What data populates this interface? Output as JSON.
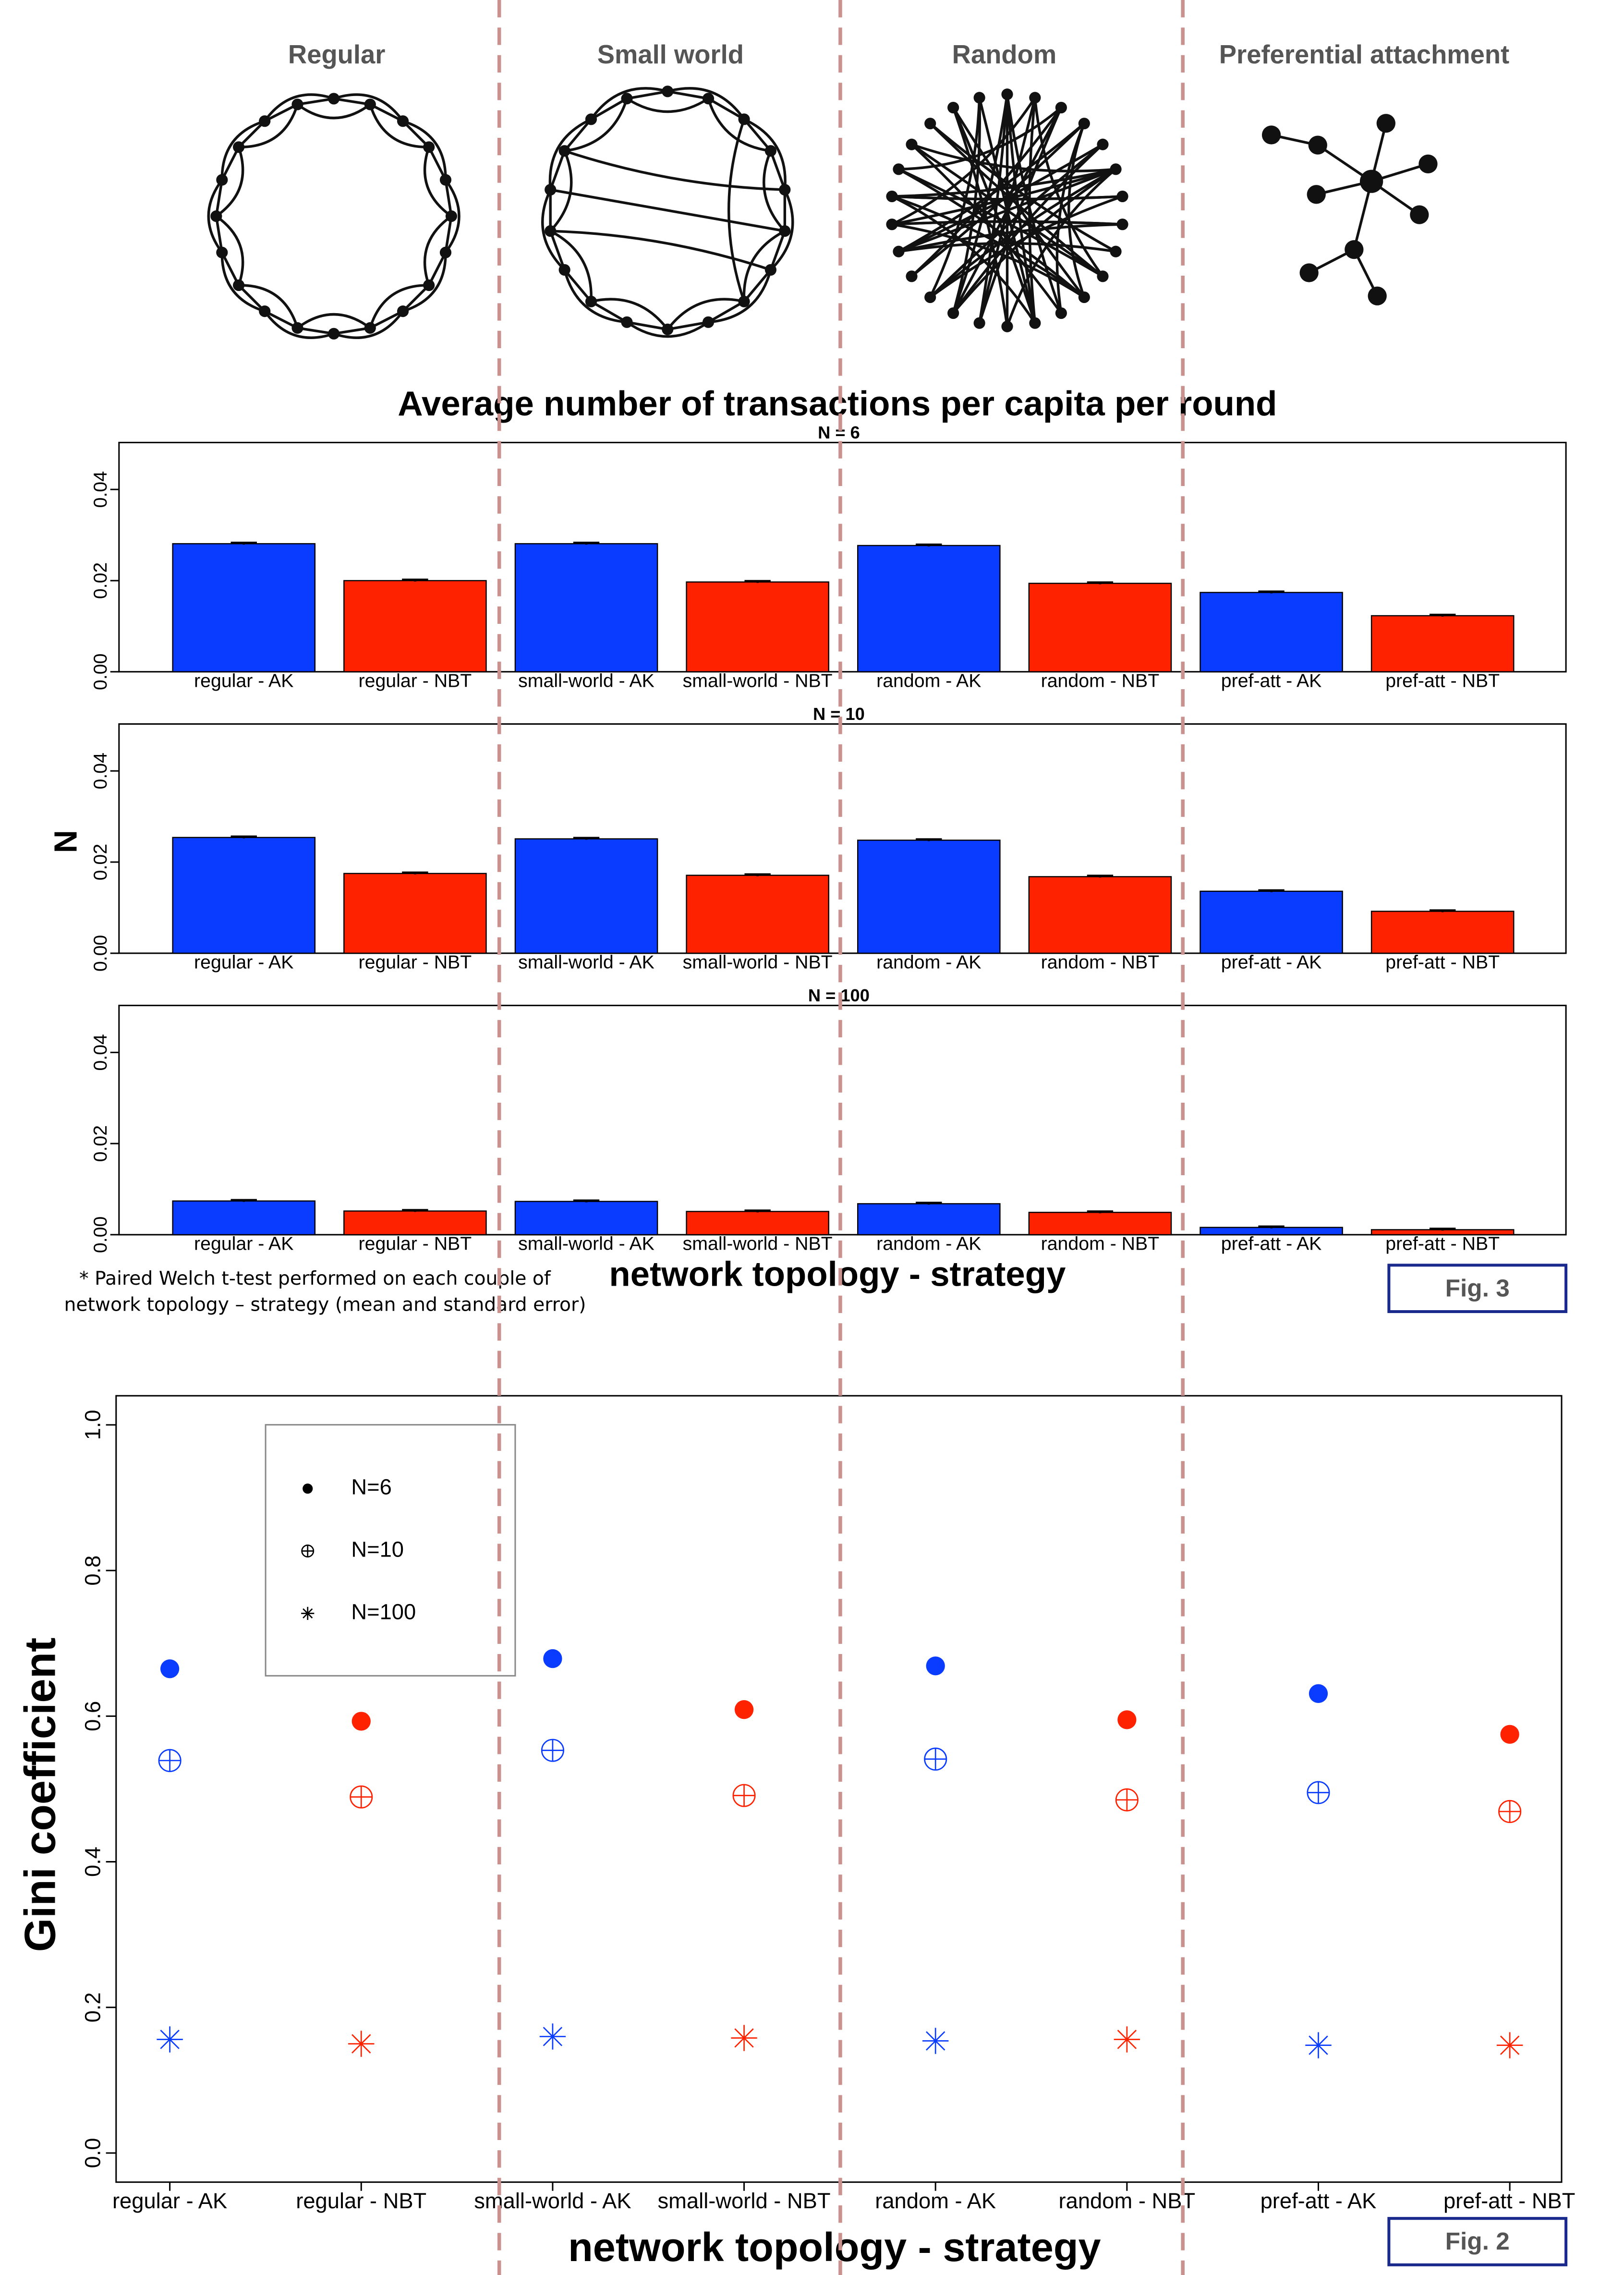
{
  "network_panels": {
    "labels": [
      "Regular",
      "Small world",
      "Random",
      "Preferential attachment"
    ]
  },
  "figure_3": {
    "title": "Average number of transactions per capita per round",
    "y_label": "N",
    "x_label": "network topology - strategy",
    "note": [
      "* Paired Welch t-test performed on each couple of",
      "network topology – strategy (mean and standard error)"
    ],
    "fig_label": "Fig. 3"
  },
  "figure_2": {
    "fig_label": "Fig. 2"
  },
  "chart_data": [
    {
      "type": "bar",
      "subtitle": "N = 6",
      "categories": [
        "regular - AK",
        "regular - NBT",
        "small-world - AK",
        "small-world - NBT",
        "random - AK",
        "random - NBT",
        "pref-att - AK",
        "pref-att - NBT"
      ],
      "values": [
        0.0281,
        0.02,
        0.0281,
        0.0197,
        0.0277,
        0.0194,
        0.0174,
        0.0123
      ],
      "errors": [
        0.0002,
        0.0002,
        0.0002,
        0.0002,
        0.0002,
        0.0002,
        0.0002,
        0.0002
      ],
      "colors": [
        "#0a3cff",
        "#ff2200",
        "#0a3cff",
        "#ff2200",
        "#0a3cff",
        "#ff2200",
        "#0a3cff",
        "#ff2200"
      ],
      "ylim": [
        0,
        0.0503
      ],
      "yticks": [
        {
          "value": 0,
          "label": "0.00"
        },
        {
          "value": 0.02,
          "label": "0.02"
        },
        {
          "value": 0.04,
          "label": "0.04"
        }
      ]
    },
    {
      "type": "bar",
      "subtitle": "N = 10",
      "categories": [
        "regular - AK",
        "regular - NBT",
        "small-world - AK",
        "small-world - NBT",
        "random - AK",
        "random - NBT",
        "pref-att - AK",
        "pref-att - NBT"
      ],
      "values": [
        0.0254,
        0.0175,
        0.0251,
        0.0171,
        0.0248,
        0.0168,
        0.0136,
        0.0092
      ],
      "errors": [
        0.0002,
        0.0002,
        0.0002,
        0.0002,
        0.0002,
        0.0002,
        0.0002,
        0.0002
      ],
      "colors": [
        "#0a3cff",
        "#ff2200",
        "#0a3cff",
        "#ff2200",
        "#0a3cff",
        "#ff2200",
        "#0a3cff",
        "#ff2200"
      ],
      "ylim": [
        0,
        0.0503
      ],
      "yticks": [
        {
          "value": 0,
          "label": "0.00"
        },
        {
          "value": 0.02,
          "label": "0.02"
        },
        {
          "value": 0.04,
          "label": "0.04"
        }
      ]
    },
    {
      "type": "bar",
      "subtitle": "N = 100",
      "categories": [
        "regular - AK",
        "regular - NBT",
        "small-world - AK",
        "small-world - NBT",
        "random - AK",
        "random - NBT",
        "pref-att - AK",
        "pref-att - NBT"
      ],
      "values": [
        0.0074,
        0.0052,
        0.0073,
        0.0051,
        0.0068,
        0.0049,
        0.0016,
        0.0011
      ],
      "errors": [
        0.0002,
        0.0002,
        0.0002,
        0.0002,
        0.0002,
        0.0002,
        0.0002,
        0.0002
      ],
      "colors": [
        "#0a3cff",
        "#ff2200",
        "#0a3cff",
        "#ff2200",
        "#0a3cff",
        "#ff2200",
        "#0a3cff",
        "#ff2200"
      ],
      "ylim": [
        0,
        0.0503
      ],
      "yticks": [
        {
          "value": 0,
          "label": "0.00"
        },
        {
          "value": 0.02,
          "label": "0.02"
        },
        {
          "value": 0.04,
          "label": "0.04"
        }
      ]
    },
    {
      "type": "scatter",
      "y_label": "Gini coefficient",
      "x_label": "network topology - strategy",
      "categories": [
        "regular - AK",
        "regular - NBT",
        "small-world - AK",
        "small-world - NBT",
        "random - AK",
        "random - NBT",
        "pref-att - AK",
        "pref-att - NBT"
      ],
      "category_colors": [
        "#0a3cff",
        "#ff2200",
        "#0a3cff",
        "#ff2200",
        "#0a3cff",
        "#ff2200",
        "#0a3cff",
        "#ff2200"
      ],
      "series": [
        {
          "name": "N=6",
          "marker": "dot",
          "color": "#000000",
          "values": [
            0.665,
            0.593,
            0.679,
            0.609,
            0.669,
            0.595,
            0.631,
            0.575
          ]
        },
        {
          "name": "N=10",
          "marker": "circle-plus",
          "color": "#000000",
          "values": [
            0.539,
            0.489,
            0.553,
            0.491,
            0.541,
            0.485,
            0.495,
            0.469
          ]
        },
        {
          "name": "N=100",
          "marker": "asterisk",
          "color": "#000000",
          "values": [
            0.156,
            0.15,
            0.16,
            0.158,
            0.154,
            0.156,
            0.148,
            0.148
          ]
        }
      ],
      "ylim": [
        -0.04,
        1.04
      ],
      "yticks": [
        {
          "value": 0,
          "label": "0.0"
        },
        0.2,
        0.4,
        0.6,
        0.8,
        {
          "value": 1,
          "label": "1.0"
        }
      ]
    }
  ]
}
